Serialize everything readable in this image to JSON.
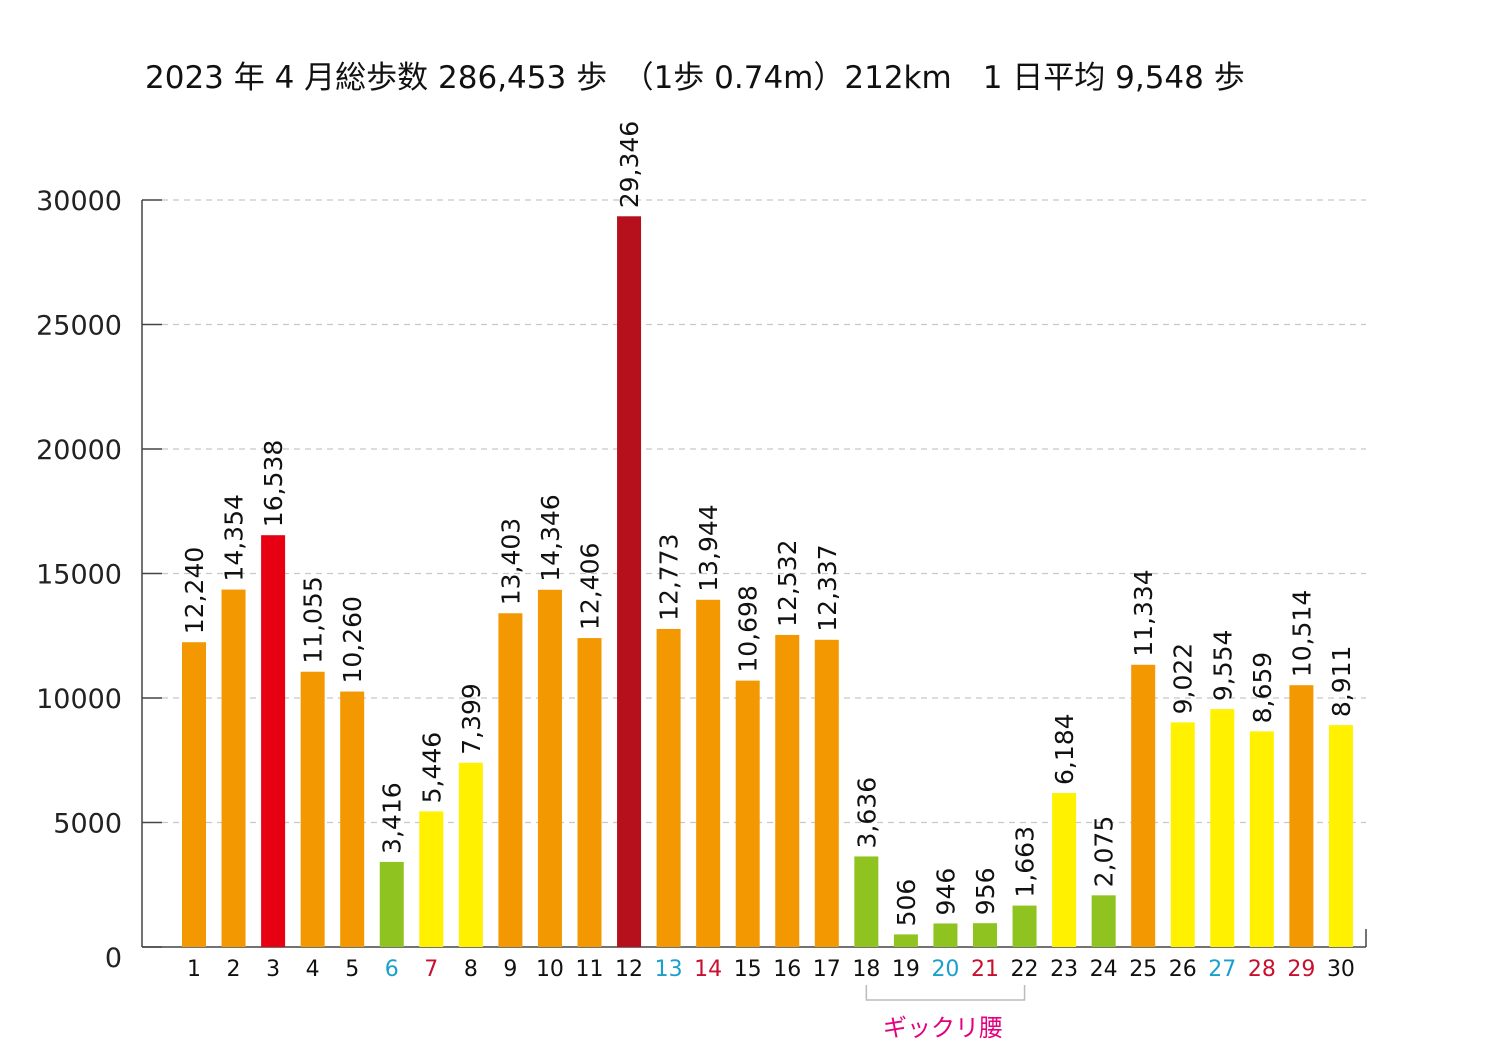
{
  "chart_data": {
    "type": "bar",
    "title": "2023 年 4 月総歩数 286,453 歩　（1歩  0.74m）212km　1 日平均 9,548 歩",
    "xlabel": "",
    "ylabel": "",
    "ylim": [
      0,
      30000
    ],
    "yticks": [
      "0",
      "5000",
      "10000",
      "15000",
      "20000",
      "25000",
      "30000"
    ],
    "ytick_values": [
      0,
      5000,
      10000,
      15000,
      20000,
      25000,
      30000
    ],
    "grid": "horizontal dashed",
    "categories": [
      "1",
      "2",
      "3",
      "4",
      "5",
      "6",
      "7",
      "8",
      "9",
      "10",
      "11",
      "12",
      "13",
      "14",
      "15",
      "16",
      "17",
      "18",
      "19",
      "20",
      "21",
      "22",
      "23",
      "24",
      "25",
      "26",
      "27",
      "28",
      "29",
      "30"
    ],
    "values": [
      12240,
      14354,
      16538,
      11055,
      10260,
      3416,
      5446,
      7399,
      13403,
      14346,
      12406,
      29346,
      12773,
      13944,
      10698,
      12532,
      12337,
      3636,
      506,
      946,
      956,
      1663,
      6184,
      2075,
      11334,
      9022,
      9554,
      8659,
      10514,
      8911
    ],
    "value_labels": [
      "12,240",
      "14,354",
      "16,538",
      "11,055",
      "10,260",
      "3,416",
      "5,446",
      "7,399",
      "13,403",
      "14,346",
      "12,406",
      "29,346",
      "12,773",
      "13,944",
      "10,698",
      "12,532",
      "12,337",
      "3,636",
      "506",
      "946",
      "956",
      "1,663",
      "6,184",
      "2,075",
      "11,334",
      "9,022",
      "9,554",
      "8,659",
      "10,514",
      "8,911"
    ],
    "bar_colors": [
      "#f39800",
      "#f39800",
      "#e60012",
      "#f39800",
      "#f39800",
      "#8fc31f",
      "#fff100",
      "#fff100",
      "#f39800",
      "#f39800",
      "#f39800",
      "#b5101c",
      "#f39800",
      "#f39800",
      "#f39800",
      "#f39800",
      "#f39800",
      "#8fc31f",
      "#8fc31f",
      "#8fc31f",
      "#8fc31f",
      "#8fc31f",
      "#fff100",
      "#8fc31f",
      "#f39800",
      "#fff100",
      "#fff100",
      "#fff100",
      "#f39800",
      "#fff100"
    ],
    "category_label_colors": [
      "#111",
      "#111",
      "#111",
      "#111",
      "#111",
      "#1aa0cc",
      "#c8102e",
      "#111",
      "#111",
      "#111",
      "#111",
      "#111",
      "#1aa0cc",
      "#c8102e",
      "#111",
      "#111",
      "#111",
      "#111",
      "#111",
      "#1aa0cc",
      "#c8102e",
      "#111",
      "#111",
      "#111",
      "#111",
      "#111",
      "#1aa0cc",
      "#c8102e",
      "#c8102e",
      "#111"
    ],
    "annotation": {
      "text": "ギックリ腰",
      "from_category": "18",
      "to_category": "22",
      "color": "#e4007f"
    }
  }
}
